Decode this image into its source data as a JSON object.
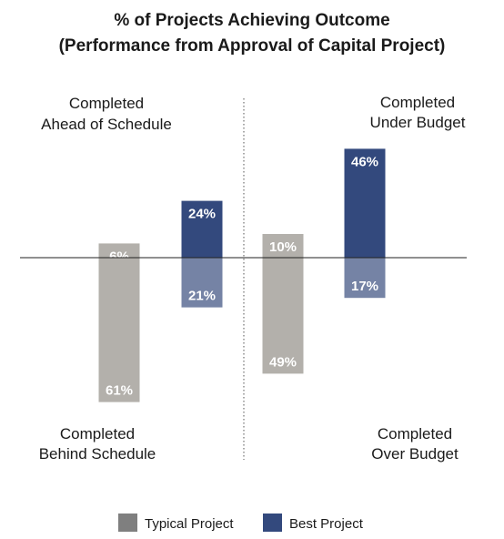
{
  "chart_data": {
    "type": "bar",
    "title": "% of Projects Achieving Outcome",
    "subtitle": "(Performance from Approval of Capital Project)",
    "groups": [
      {
        "up_label": [
          "Completed",
          "Ahead of Schedule"
        ],
        "down_label": [
          "Completed",
          "Behind Schedule"
        ],
        "bars": [
          {
            "series": "Typical Project",
            "up": 6,
            "down": 61
          },
          {
            "series": "Best Project",
            "up": 24,
            "down": 21
          }
        ]
      },
      {
        "up_label": [
          "Completed",
          "Under Budget"
        ],
        "down_label": [
          "Completed",
          "Over Budget"
        ],
        "bars": [
          {
            "series": "Typical Project",
            "up": 10,
            "down": 49
          },
          {
            "series": "Best Project",
            "up": 46,
            "down": 17
          }
        ]
      }
    ],
    "series": [
      {
        "name": "Typical Project",
        "color_up": "#b3b0ab",
        "color_down": "#b3b0ab",
        "label_up_color": "#ffffff",
        "label_down_color": "#ffffff"
      },
      {
        "name": "Best Project",
        "color_up": "#33497d",
        "color_down": "#7583a5",
        "label_up_color": "#ffffff",
        "label_down_color": "#ffffff"
      }
    ],
    "legend": {
      "placement": "bottom",
      "swatch_typical": "#7f7f7f",
      "swatch_best": "#33497d"
    }
  }
}
